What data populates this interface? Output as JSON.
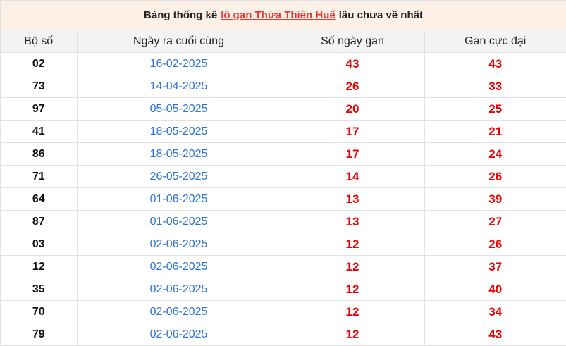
{
  "title": {
    "prefix": "Bảng thống kê",
    "link": "lô gan Thừa Thiên Huế",
    "suffix": "lâu chưa về nhất"
  },
  "headers": [
    "Bộ số",
    "Ngày ra cuối cùng",
    "Số ngày gan",
    "Gan cực đại"
  ],
  "rows": [
    [
      "02",
      "16-02-2025",
      "43",
      "43"
    ],
    [
      "73",
      "14-04-2025",
      "26",
      "33"
    ],
    [
      "97",
      "05-05-2025",
      "20",
      "25"
    ],
    [
      "41",
      "18-05-2025",
      "17",
      "21"
    ],
    [
      "86",
      "18-05-2025",
      "17",
      "24"
    ],
    [
      "71",
      "26-05-2025",
      "14",
      "26"
    ],
    [
      "64",
      "01-06-2025",
      "13",
      "39"
    ],
    [
      "87",
      "01-06-2025",
      "13",
      "27"
    ],
    [
      "03",
      "02-06-2025",
      "12",
      "26"
    ],
    [
      "12",
      "02-06-2025",
      "12",
      "37"
    ],
    [
      "35",
      "02-06-2025",
      "12",
      "40"
    ],
    [
      "70",
      "02-06-2025",
      "12",
      "34"
    ],
    [
      "79",
      "02-06-2025",
      "12",
      "43"
    ]
  ],
  "colors": {
    "link": "#e53935",
    "date": "#2b73d6",
    "count": "#ee0000",
    "title_bg": "#fdf0e6"
  }
}
